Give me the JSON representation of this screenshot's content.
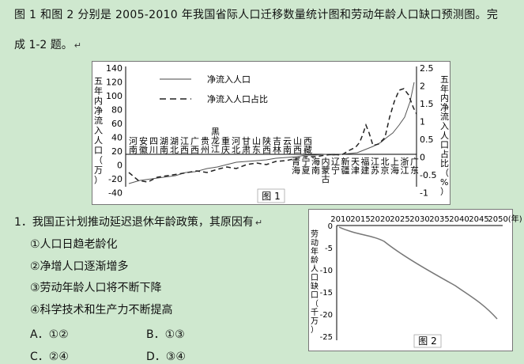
{
  "intro_line1": "图 1 和图 2 分别是 2005-2010 年我国省际人口迁移数量统计图和劳动年龄人口缺口预测图。完",
  "intro_line2": "成 1-2 题。",
  "return_mark": "↵",
  "fig1": {
    "caption": "图 1",
    "left_axis_label": [
      "五",
      "年",
      "内",
      "净",
      "流",
      "入",
      "人",
      "口",
      "（",
      "万",
      "）"
    ],
    "right_axis_label": [
      "五",
      "年",
      "内",
      "净",
      "流",
      "入",
      "人",
      "口",
      "占",
      "比",
      "（",
      "%",
      "）"
    ],
    "legend_solid": "净流入人口",
    "legend_dashed": "净流入人口占比",
    "left_ticks": [
      "140",
      "120",
      "100",
      "80",
      "60",
      "40",
      "20",
      "0",
      "-20",
      "-40"
    ],
    "right_ticks": [
      "2.5",
      "2",
      "1.5",
      "1",
      "0.5",
      "0",
      "-0.5",
      "-1"
    ],
    "provinces_top": [
      "河南",
      "安徽",
      "四川",
      "湖南",
      "湖北",
      "江西",
      "广西",
      "贵州",
      "黑龙江",
      "重庆",
      "河北",
      "甘肃",
      "山东",
      "陕西",
      "吉林",
      "云南",
      "山西",
      "西藏"
    ],
    "provinces_bottom": [
      "青海",
      "宁夏",
      "海南",
      "内蒙古",
      "辽宁",
      "新疆",
      "天津",
      "福建",
      "江苏",
      "北京",
      "上海",
      "浙江",
      "广东"
    ]
  },
  "fig2": {
    "caption": "图 2",
    "y_axis_label": [
      "劳",
      "动",
      "年",
      "龄",
      "人",
      "口",
      "缺",
      "口",
      "（",
      "千",
      "万",
      "）"
    ],
    "x_ticks": [
      "2010",
      "2015",
      "2020",
      "2025",
      "2030",
      "2035",
      "2040",
      "2045",
      "2050(年)"
    ],
    "y_ticks": [
      "0",
      "-5",
      "-10",
      "-15",
      "-20",
      "-25"
    ]
  },
  "question": "1．我国正计划推动延迟退休年龄政策，其原因有",
  "statements": [
    "①人口日趋老龄化",
    "②净增人口逐渐增多",
    "③劳动年龄人口将不断下降",
    "④科学技术和生产力不断提高"
  ],
  "options": {
    "a": "A．①②",
    "b": "B．①③",
    "c": "C．②④",
    "d": "D．③④"
  }
}
